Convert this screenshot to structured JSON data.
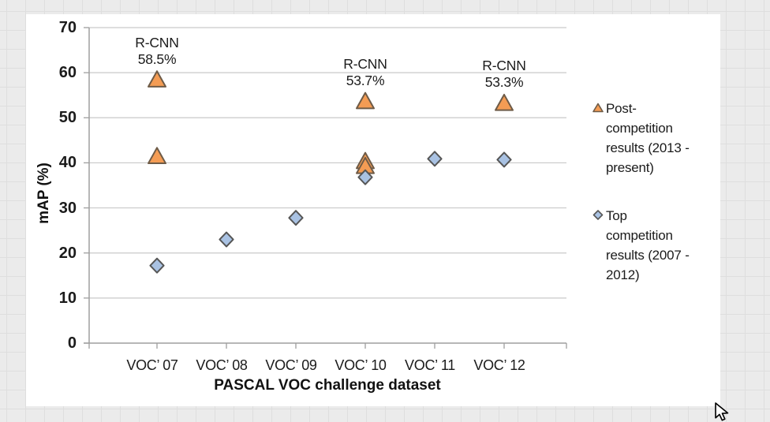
{
  "chart_data": {
    "type": "scatter",
    "title": "",
    "xlabel": "PASCAL VOC challenge dataset",
    "ylabel": "mAP (%)",
    "ylim": [
      0,
      70
    ],
    "ytick_interval": 10,
    "grid": "horizontal",
    "legend_position": "right",
    "categories": [
      "VOC’ 07",
      "VOC’ 08",
      "VOC’ 09",
      "VOC’ 10",
      "VOC’ 11",
      "VOC’ 12"
    ],
    "series": [
      {
        "name": "Post-competition results (2013 - present)",
        "marker": "triangle",
        "fill": "#F49C54",
        "stroke": "#6E5B47",
        "points": [
          {
            "category": 0,
            "value": 58.5
          },
          {
            "category": 0,
            "value": 41.5
          },
          {
            "category": 3,
            "value": 53.7
          },
          {
            "category": 3,
            "value": 40.4
          },
          {
            "category": 3,
            "value": 39.3
          },
          {
            "category": 5,
            "value": 53.3
          }
        ]
      },
      {
        "name": "Top competition results (2007 - 2012)",
        "marker": "diamond",
        "fill": "#A9C2E3",
        "stroke": "#565656",
        "points": [
          {
            "category": 0,
            "value": 17.2
          },
          {
            "category": 1,
            "value": 23.0
          },
          {
            "category": 2,
            "value": 27.8
          },
          {
            "category": 3,
            "value": 36.8
          },
          {
            "category": 4,
            "value": 40.9
          },
          {
            "category": 5,
            "value": 40.7
          }
        ]
      }
    ],
    "annotations": [
      {
        "lines": [
          "R-CNN",
          "58.5%"
        ],
        "category": 0,
        "value": 58.5
      },
      {
        "lines": [
          "R-CNN",
          "53.7%"
        ],
        "category": 3,
        "value": 53.7
      },
      {
        "lines": [
          "R-CNN",
          "53.3%"
        ],
        "category": 5,
        "value": 53.3
      }
    ],
    "legend": [
      {
        "marker": "triangle",
        "label": "Post-competition results (2013 - present)",
        "display_lines": [
          "Post-",
          "competition",
          "results (2013 -",
          "present)"
        ]
      },
      {
        "marker": "diamond",
        "label": "Top competition results (2007 - 2012)",
        "display_lines": [
          "Top",
          "competition",
          "results (2007 -",
          "2012)"
        ]
      }
    ],
    "axis_color": "#9f9f9f",
    "gridline_color": "#c9c9c9"
  }
}
